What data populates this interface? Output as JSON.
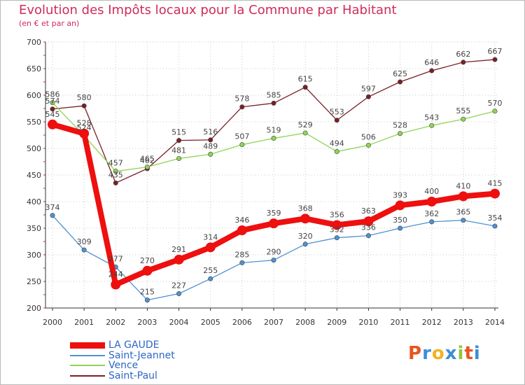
{
  "title": "Evolution des Impôts locaux pour la Commune par Habitant",
  "subtitle": "(en € et par an)",
  "logo": {
    "text": "Proxiti",
    "colors": [
      "#e8541e",
      "#3c8ed6",
      "#f2b320",
      "#3c8ed6",
      "#8fc640",
      "#e8541e",
      "#3c8ed6"
    ]
  },
  "chart_data": {
    "type": "line",
    "x": [
      "2000",
      "2001",
      "2002",
      "2003",
      "2004",
      "2005",
      "2006",
      "2007",
      "2008",
      "2009",
      "2010",
      "2011",
      "2012",
      "2013",
      "2014"
    ],
    "ylim": [
      200,
      700
    ],
    "yticks": [
      200,
      250,
      300,
      350,
      400,
      450,
      500,
      550,
      600,
      650,
      700
    ],
    "grid": true,
    "legend_position": "bottom-left",
    "series": [
      {
        "name": "Saint-Paul",
        "color": "#7a1f26",
        "values": [
          574,
          580,
          435,
          462,
          515,
          516,
          578,
          585,
          615,
          553,
          597,
          625,
          646,
          662,
          667
        ]
      },
      {
        "name": "Vence",
        "color": "#8fd453",
        "values": [
          586,
          524,
          457,
          465,
          481,
          489,
          507,
          519,
          529,
          494,
          506,
          528,
          543,
          555,
          570
        ]
      },
      {
        "name": "Saint-Jeannet",
        "color": "#4f92cf",
        "values": [
          374,
          309,
          277,
          215,
          227,
          255,
          285,
          290,
          320,
          332,
          336,
          350,
          362,
          365,
          354
        ]
      },
      {
        "name": "LA GAUDE",
        "color": "#ee0f0f",
        "values": [
          545,
          528,
          244,
          270,
          291,
          314,
          346,
          359,
          368,
          356,
          363,
          393,
          400,
          410,
          415
        ]
      }
    ]
  }
}
